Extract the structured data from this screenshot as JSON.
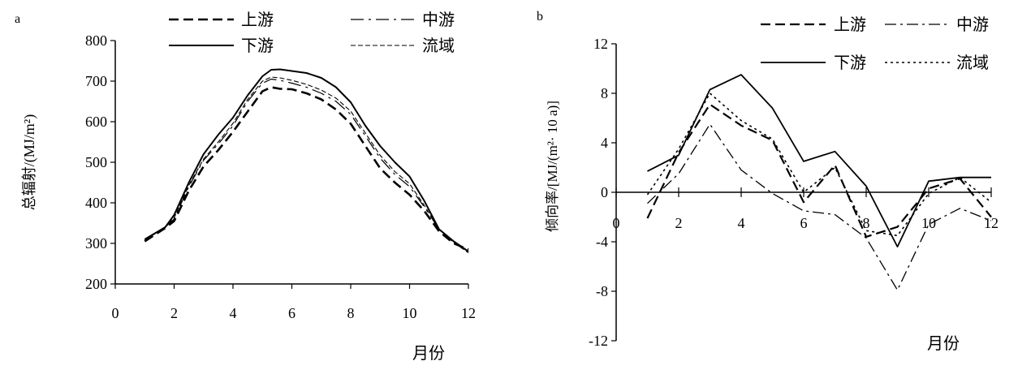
{
  "chart_data": [
    {
      "type": "line",
      "panel_label": "a",
      "xlabel": "月份",
      "ylabel": "总辐射/(MJ/m²)",
      "xlim": [
        0,
        12
      ],
      "ylim": [
        200,
        800
      ],
      "x_ticks": [
        0,
        2,
        4,
        6,
        8,
        10,
        12
      ],
      "y_ticks": [
        200,
        300,
        400,
        500,
        600,
        700,
        800
      ],
      "grid": false,
      "legend_position": "top",
      "x": [
        1,
        1.7,
        2,
        2.5,
        3,
        3.5,
        4,
        4.5,
        5,
        5.3,
        5.6,
        6,
        6.5,
        7,
        7.5,
        8,
        8.5,
        9,
        9.5,
        10,
        10.5,
        11,
        11.5,
        12
      ],
      "series": [
        {
          "name": "上游",
          "values": [
            305,
            338,
            355,
            430,
            490,
            530,
            575,
            625,
            675,
            685,
            681,
            680,
            670,
            655,
            630,
            595,
            540,
            485,
            450,
            420,
            380,
            330,
            300,
            285
          ]
        },
        {
          "name": "中游",
          "values": [
            308,
            340,
            360,
            440,
            505,
            545,
            590,
            650,
            695,
            705,
            702,
            695,
            685,
            670,
            650,
            618,
            565,
            510,
            470,
            440,
            390,
            335,
            305,
            280
          ]
        },
        {
          "name": "下游",
          "values": [
            310,
            340,
            370,
            450,
            520,
            568,
            610,
            665,
            712,
            728,
            729,
            725,
            720,
            708,
            685,
            648,
            590,
            540,
            500,
            465,
            405,
            335,
            305,
            280
          ]
        },
        {
          "name": "流域",
          "values": [
            307,
            341,
            363,
            443,
            508,
            550,
            596,
            655,
            700,
            710,
            708,
            702,
            692,
            678,
            658,
            626,
            572,
            517,
            477,
            447,
            394,
            334,
            302,
            277
          ]
        }
      ]
    },
    {
      "type": "line",
      "panel_label": "b",
      "xlabel": "月份",
      "ylabel": "倾向率/[MJ/(m²· 10 a)]",
      "xlim": [
        0,
        12
      ],
      "ylim": [
        -12,
        12
      ],
      "x_ticks": [
        0,
        2,
        4,
        6,
        8,
        10,
        12
      ],
      "y_ticks": [
        -12,
        -8,
        -4,
        0,
        4,
        8,
        12
      ],
      "grid": false,
      "legend_position": "top",
      "x": [
        1,
        2,
        3,
        4,
        5,
        6,
        7,
        8,
        9,
        10,
        11,
        12
      ],
      "series": [
        {
          "name": "上游",
          "values": [
            -2.1,
            3.2,
            7.1,
            5.4,
            4.2,
            -0.8,
            2.2,
            -3.6,
            -2.8,
            0.3,
            1.1,
            -2.0
          ]
        },
        {
          "name": "中游",
          "values": [
            -0.9,
            1.5,
            5.5,
            1.8,
            -0.1,
            -1.5,
            -1.8,
            -3.7,
            -7.9,
            -2.6,
            -1.3,
            -2.3
          ]
        },
        {
          "name": "下游",
          "values": [
            1.7,
            3.0,
            8.3,
            9.5,
            6.8,
            2.5,
            3.3,
            0.5,
            -4.4,
            0.9,
            1.2,
            1.2
          ]
        },
        {
          "name": "流域",
          "values": [
            -0.2,
            3.5,
            8.0,
            5.8,
            4.3,
            0.0,
            2.0,
            -3.1,
            -3.5,
            -0.1,
            1.2,
            -0.8
          ]
        }
      ]
    }
  ]
}
